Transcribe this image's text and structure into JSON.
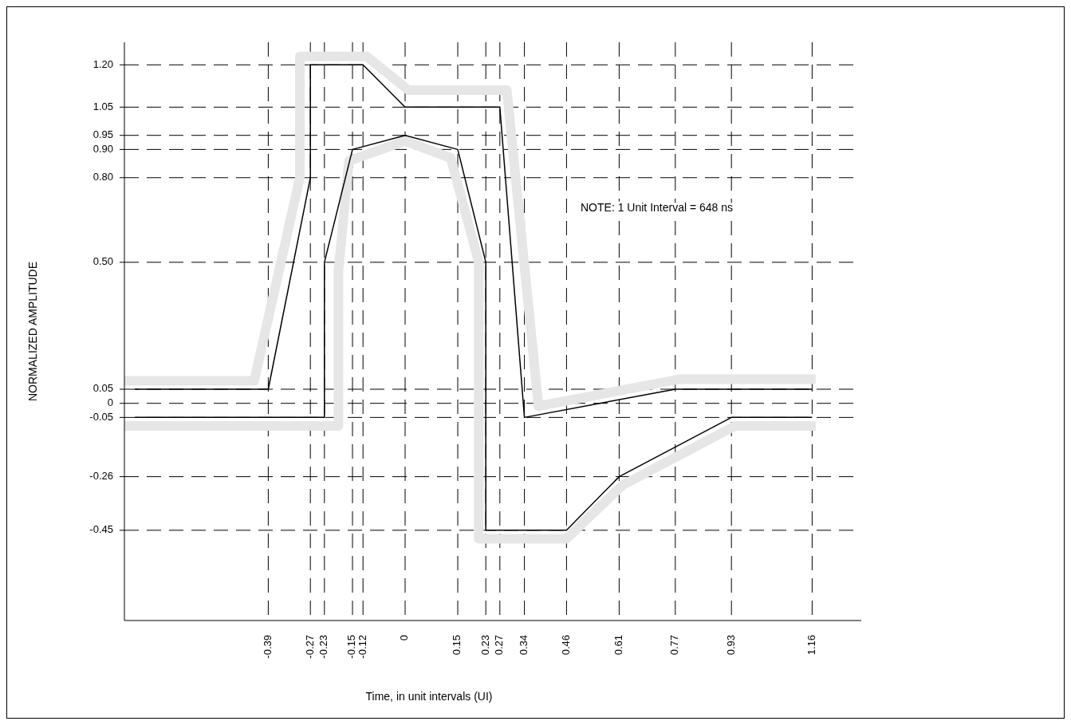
{
  "chart_data": {
    "type": "line",
    "xlabel": "Time, in unit intervals (UI)",
    "ylabel": "NORMALIZED AMPLITUDE",
    "annotations": [
      "NOTE: 1 Unit Interval = 648 ns"
    ],
    "xlim": [
      -0.8,
      1.3
    ],
    "ylim": [
      -0.77,
      1.28
    ],
    "xticks": [
      -0.39,
      -0.27,
      -0.23,
      -0.15,
      -0.12,
      0,
      0.15,
      0.23,
      0.27,
      0.34,
      0.46,
      0.61,
      0.77,
      0.93,
      1.16
    ],
    "yticks": [
      {
        "value": 1.2,
        "label": "1.20"
      },
      1.05,
      0.95,
      {
        "value": 0.9,
        "label": "0.90"
      },
      {
        "value": 0.8,
        "label": "0.80"
      },
      {
        "value": 0.5,
        "label": "0.50"
      },
      0.05,
      0,
      -0.05,
      -0.26,
      -0.45
    ],
    "grid": true,
    "line_style": "solid",
    "series": [
      {
        "color": "#e6e6e6",
        "x": [
          -0.8,
          -0.43,
          -0.3,
          -0.3,
          -0.11,
          0.01,
          0.29,
          0.38,
          0.78,
          1.17
        ],
        "values": [
          0.08,
          0.08,
          0.8,
          1.23,
          1.23,
          1.11,
          1.11,
          -0.01,
          0.085,
          0.085
        ]
      },
      {
        "color": "#e6e6e6",
        "x": [
          -0.8,
          -0.19,
          -0.19,
          -0.16,
          0,
          0.13,
          0.21,
          0.21,
          0.46,
          0.62,
          0.94,
          1.17
        ],
        "values": [
          -0.08,
          -0.08,
          0.47,
          0.86,
          0.93,
          0.87,
          0.5,
          -0.48,
          -0.48,
          -0.29,
          -0.08,
          -0.08
        ]
      },
      {
        "color": "#000000",
        "x": [
          -0.77,
          -0.39,
          -0.27,
          -0.27,
          -0.12,
          0,
          0.27,
          0.34,
          0.77,
          1.16
        ],
        "values": [
          0.05,
          0.05,
          0.8,
          1.2,
          1.2,
          1.05,
          1.05,
          -0.05,
          0.05,
          0.05
        ]
      },
      {
        "color": "#000000",
        "x": [
          -0.77,
          -0.23,
          -0.23,
          -0.15,
          0,
          0.15,
          0.23,
          0.23,
          0.46,
          0.61,
          0.93,
          1.16
        ],
        "values": [
          -0.05,
          -0.05,
          0.5,
          0.9,
          0.95,
          0.9,
          0.5,
          -0.45,
          -0.45,
          -0.26,
          -0.05,
          -0.05
        ]
      }
    ]
  }
}
